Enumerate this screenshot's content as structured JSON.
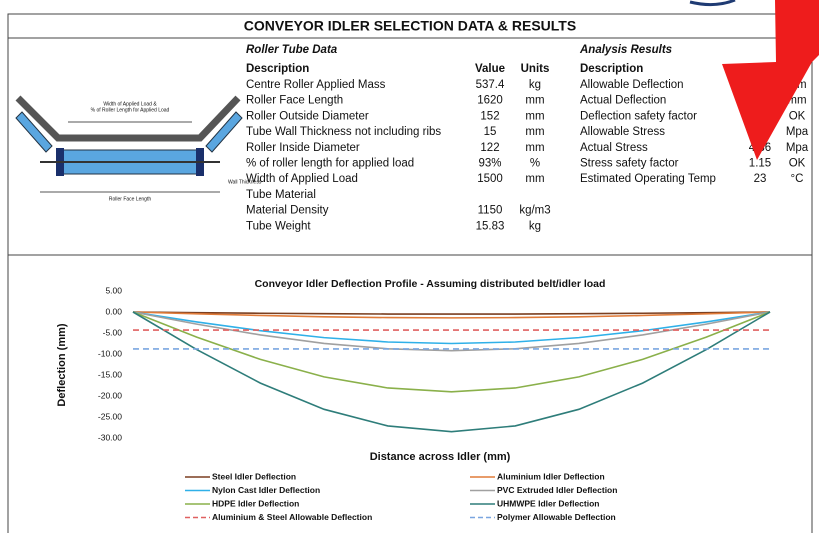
{
  "header": {
    "title": "CONVEYOR IDLER SELECTION DATA & RESULTS"
  },
  "diagram": {
    "labels": [
      "Width of Applied Load &",
      "% of Roller Length for Applied Load",
      "Roller Face Length",
      "Wall Thickness"
    ]
  },
  "tube_table": {
    "title": "Roller Tube Data",
    "columns": [
      "Description",
      "Value",
      "Units"
    ],
    "rows": [
      {
        "description": "Centre Roller Applied Mass",
        "value": 537.4,
        "units": "kg"
      },
      {
        "description": "Roller Face Length",
        "value": 1620,
        "units": "mm"
      },
      {
        "description": "Roller Outside Diameter",
        "value": 152,
        "units": "mm"
      },
      {
        "description": "Tube Wall Thickness not including ribs",
        "value": 15,
        "units": "mm"
      },
      {
        "description": "Roller Inside Diameter",
        "value": 122,
        "units": "mm"
      },
      {
        "description": "% of roller length for applied load",
        "value": "93%",
        "units": "%"
      },
      {
        "description": "Width of Applied Load",
        "value": 1500,
        "units": "mm"
      },
      {
        "description": "Tube Material"
      },
      {
        "description": "Material Density",
        "value": 1150,
        "units": "kg/m3"
      },
      {
        "description": "Tube Weight",
        "value": 15.83,
        "units": "kg"
      }
    ]
  },
  "results_table": {
    "title": "Analysis Results",
    "columns": [
      "Description"
    ],
    "rows": [
      {
        "description": "Allowable Deflection",
        "units": "mm"
      },
      {
        "description": "Actual Deflection",
        "units": "mm"
      },
      {
        "description": "Deflection safety factor",
        "units": "OK"
      },
      {
        "description": "Allowable Stress",
        "units": "Mpa"
      },
      {
        "description": "Actual Stress",
        "value": 4.86,
        "units": "Mpa"
      },
      {
        "description": "Stress safety factor",
        "value": 1.15,
        "units": "OK"
      },
      {
        "description": "Estimated Operating Temp",
        "value": 23,
        "units": "°C"
      }
    ]
  },
  "chart_data": {
    "type": "line",
    "title": "Conveyor Idler Deflection Profile - Assuming distributed belt/idler load",
    "xlabel": "Distance across Idler (mm)",
    "ylabel": "Deflection (mm)",
    "x": [
      0,
      162,
      324,
      486,
      648,
      810,
      972,
      1134,
      1296,
      1458,
      1620
    ],
    "xlim": [
      0,
      1620
    ],
    "ylim": [
      -30,
      5
    ],
    "yticks": [
      {
        "value": 5,
        "label": "5.00"
      },
      {
        "value": 0,
        "label": "0.00"
      },
      {
        "value": -5,
        "label": "-5.00"
      },
      {
        "value": -10,
        "label": "-10.00"
      },
      {
        "value": -15,
        "label": "-15.00"
      },
      {
        "value": -20,
        "label": "-20.00"
      },
      {
        "value": -25,
        "label": "-25.00"
      },
      {
        "value": -30,
        "label": "-30.00"
      }
    ],
    "legend": "bottom",
    "series": [
      {
        "name": "Steel Idler Deflection",
        "color": "#7b3f20",
        "values": [
          0,
          -0.16,
          -0.3,
          -0.41,
          -0.48,
          -0.5,
          -0.48,
          -0.41,
          -0.3,
          -0.16,
          0
        ]
      },
      {
        "name": "Aluminium Idler Deflection",
        "color": "#e07b39",
        "values": [
          0,
          -0.44,
          -0.83,
          -1.14,
          -1.33,
          -1.4,
          -1.33,
          -1.14,
          -0.83,
          -0.44,
          0
        ]
      },
      {
        "name": "Nylon Cast Idler Deflection",
        "color": "#2fb0e8",
        "values": [
          0,
          -2.36,
          -4.46,
          -6.1,
          -7.14,
          -7.5,
          -7.14,
          -6.1,
          -4.46,
          -2.36,
          0
        ]
      },
      {
        "name": "PVC Extruded Idler Deflection",
        "color": "#a0a0a0",
        "values": [
          0,
          -2.89,
          -5.46,
          -7.48,
          -8.76,
          -9.2,
          -8.76,
          -7.48,
          -5.46,
          -2.89,
          0
        ]
      },
      {
        "name": "HDPE Idler Deflection",
        "color": "#8ab04a",
        "values": [
          0,
          -5.97,
          -11.29,
          -15.45,
          -18.09,
          -19,
          -18.09,
          -15.45,
          -11.29,
          -5.97,
          0
        ]
      },
      {
        "name": "UHMWPE Idler Deflection",
        "color": "#2e7d7a",
        "values": [
          0,
          -8.95,
          -16.93,
          -23.17,
          -27.13,
          -28.5,
          -27.13,
          -23.17,
          -16.93,
          -8.95,
          0
        ]
      },
      {
        "name": "Aluminium & Steel Allowable Deflection",
        "color": "#e06060",
        "dashed": true,
        "values": [
          -4.3,
          -4.3,
          -4.3,
          -4.3,
          -4.3,
          -4.3,
          -4.3,
          -4.3,
          -4.3,
          -4.3,
          -4.3
        ]
      },
      {
        "name": "Polymer Allowable Deflection",
        "color": "#7aa6e0",
        "dashed": true,
        "values": [
          -8.8,
          -8.8,
          -8.8,
          -8.8,
          -8.8,
          -8.8,
          -8.8,
          -8.8,
          -8.8,
          -8.8,
          -8.8
        ]
      }
    ]
  }
}
